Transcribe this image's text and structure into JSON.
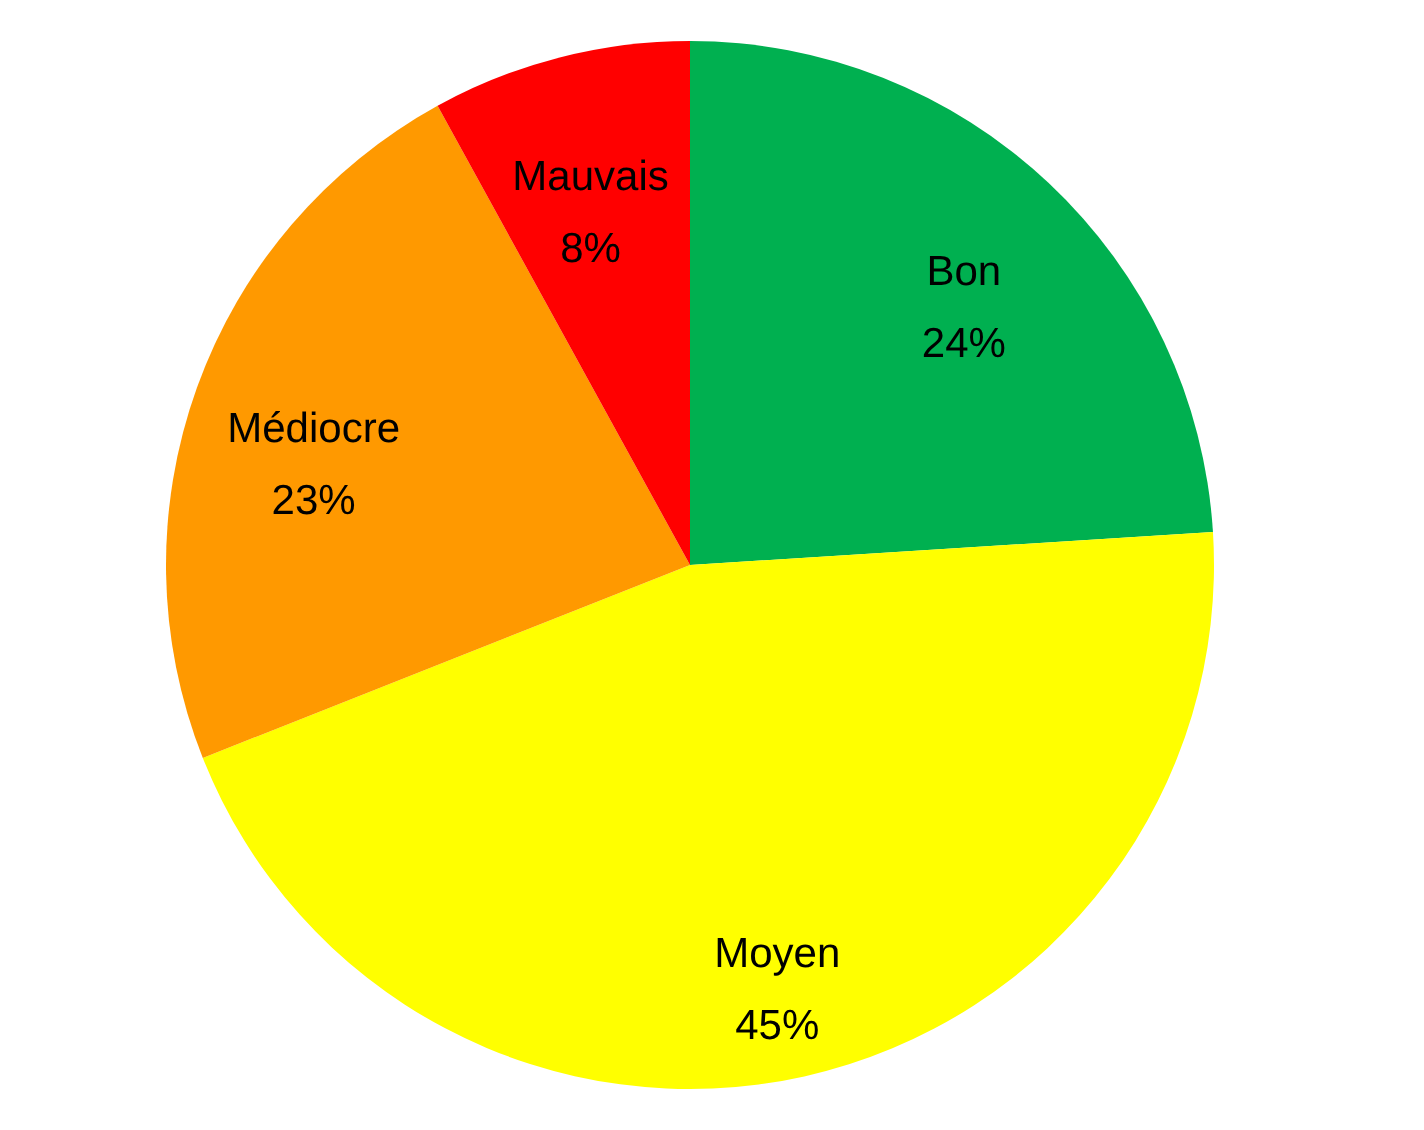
{
  "chart_data": {
    "type": "pie",
    "categories": [
      "Bon",
      "Moyen",
      "Médiocre",
      "Mauvais"
    ],
    "values": [
      24,
      45,
      23,
      8
    ],
    "value_labels": [
      "24%",
      "45%",
      "23%",
      "8%"
    ],
    "colors": [
      "#00b050",
      "#ffff00",
      "#ff9900",
      "#ff0000"
    ],
    "legend": false
  }
}
